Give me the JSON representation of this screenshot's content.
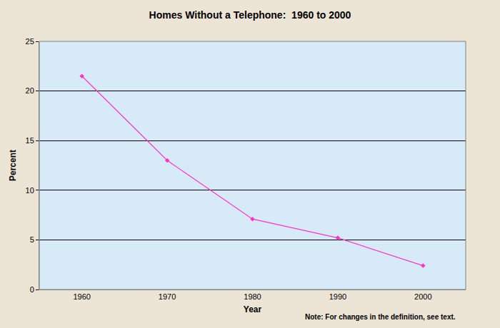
{
  "chart_data": {
    "type": "line",
    "title": "Homes Without a Telephone:  1960 to 2000",
    "x_label": "Year",
    "y_label": "Percent",
    "categories": [
      "1960",
      "1970",
      "1980",
      "1990",
      "2000"
    ],
    "values": [
      21.5,
      13.0,
      7.1,
      5.2,
      2.4
    ],
    "color": "#ff33cc",
    "marker": "diamond",
    "ylim": [
      0,
      25
    ],
    "yticks": [
      0,
      5,
      10,
      15,
      20,
      25
    ],
    "grid": true,
    "annotations": [
      "Note: For changes in the definition, see text."
    ]
  }
}
